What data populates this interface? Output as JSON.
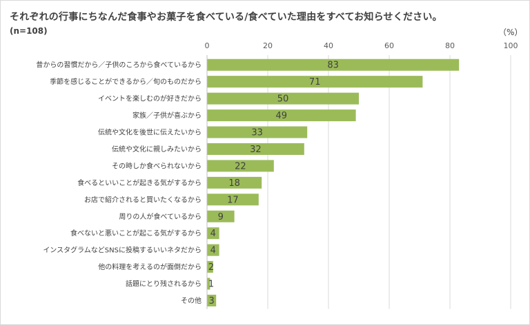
{
  "title": "それぞれの行事にちなんだ食事やお菓子を食べている/食べていた理由をすべてお知らせください。",
  "subtitle": "(n=108)",
  "unit_label": "（%）",
  "chart_data": {
    "type": "bar",
    "orientation": "horizontal",
    "xlim": [
      0,
      100
    ],
    "x_ticks": [
      0,
      20,
      40,
      60,
      80,
      100
    ],
    "grid": true,
    "bar_color": "#9bbb59",
    "categories": [
      "昔からの習慣だから／子供のころから食べているから",
      "季節を感じることができるから／旬のものだから",
      "イベントを楽しむのが好きだから",
      "家族／子供が喜ぶから",
      "伝統や文化を後世に伝えたいから",
      "伝統や文化に親しみたいから",
      "その時しか食べられないから",
      "食べるといいことが起きる気がするから",
      "お店で紹介されると買いたくなるから",
      "周りの人が食べているから",
      "食べないと悪いことが起こる気がするから",
      "インスタグラムなどSNSに投稿するいいネタだから",
      "他の料理を考えるのが面倒だから",
      "話題にとり残されるから",
      "その他"
    ],
    "values": [
      83,
      71,
      50,
      49,
      33,
      32,
      22,
      18,
      17,
      9,
      4,
      4,
      2,
      1,
      3
    ]
  }
}
